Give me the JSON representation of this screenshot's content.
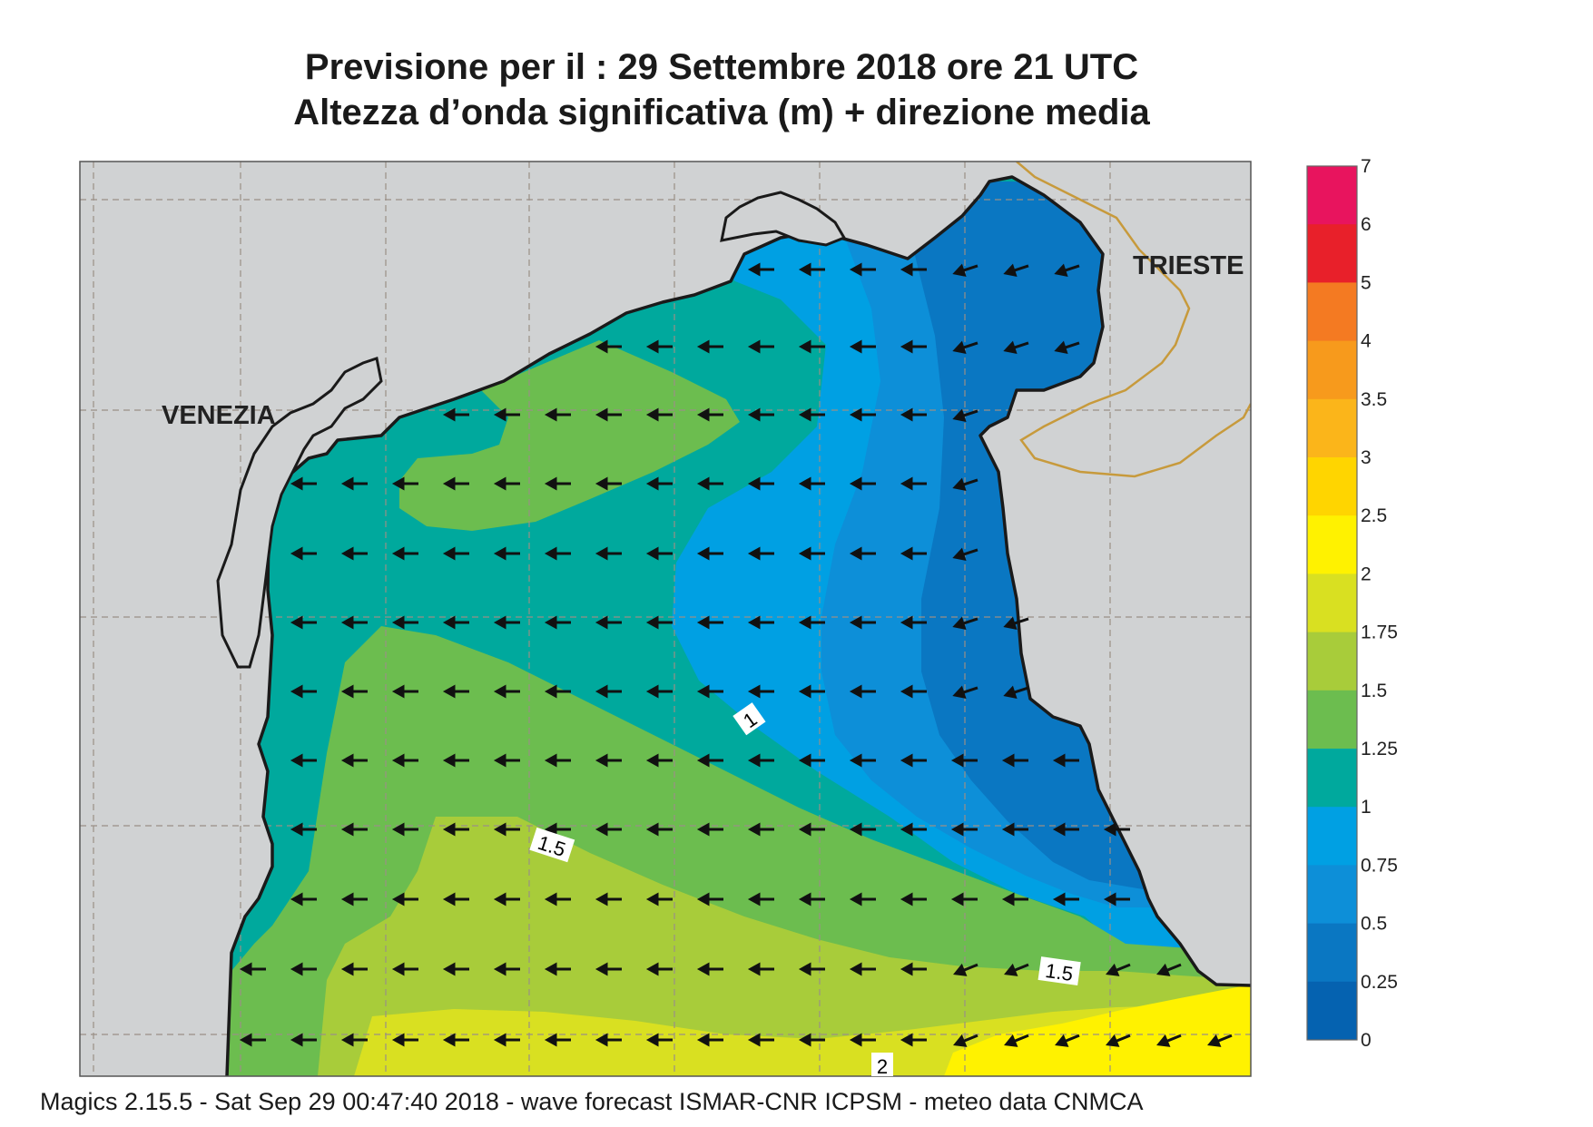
{
  "title": {
    "line1": "Previsione per il  :  29 Settembre 2018   ore 21 UTC",
    "line2": "Altezza d’onda significativa (m) + direzione media"
  },
  "places": {
    "venezia": "VENEZIA",
    "trieste": "TRIESTE"
  },
  "legend": {
    "ticks": [
      "7",
      "6",
      "5",
      "4",
      "3.5",
      "3",
      "2.5",
      "2",
      "1.75",
      "1.5",
      "1.25",
      "1",
      "0.75",
      "0.5",
      "0.25",
      "0"
    ],
    "colors": [
      "#e8145e",
      "#e8202a",
      "#f47a22",
      "#f79a1c",
      "#fbb51a",
      "#ffd500",
      "#fff200",
      "#d9e021",
      "#a8cc3a",
      "#6cbd4f",
      "#00a99d",
      "#00a0e3",
      "#0d8fd8",
      "#0a77c2",
      "#0562b0"
    ]
  },
  "contour_labels": {
    "c1": "1",
    "c15a": "1.5",
    "c15b": "1.5",
    "c2": "2"
  },
  "colors": {
    "land": "#d0d2d3",
    "coast": "#1a1a1a",
    "border": "#c79a3c",
    "arrow": "#111111"
  },
  "footer": "Magics 2.15.5 - Sat Sep 29 00:47:40 2018 - wave forecast  ISMAR-CNR  ICPSM - meteo data    CNMCA"
}
